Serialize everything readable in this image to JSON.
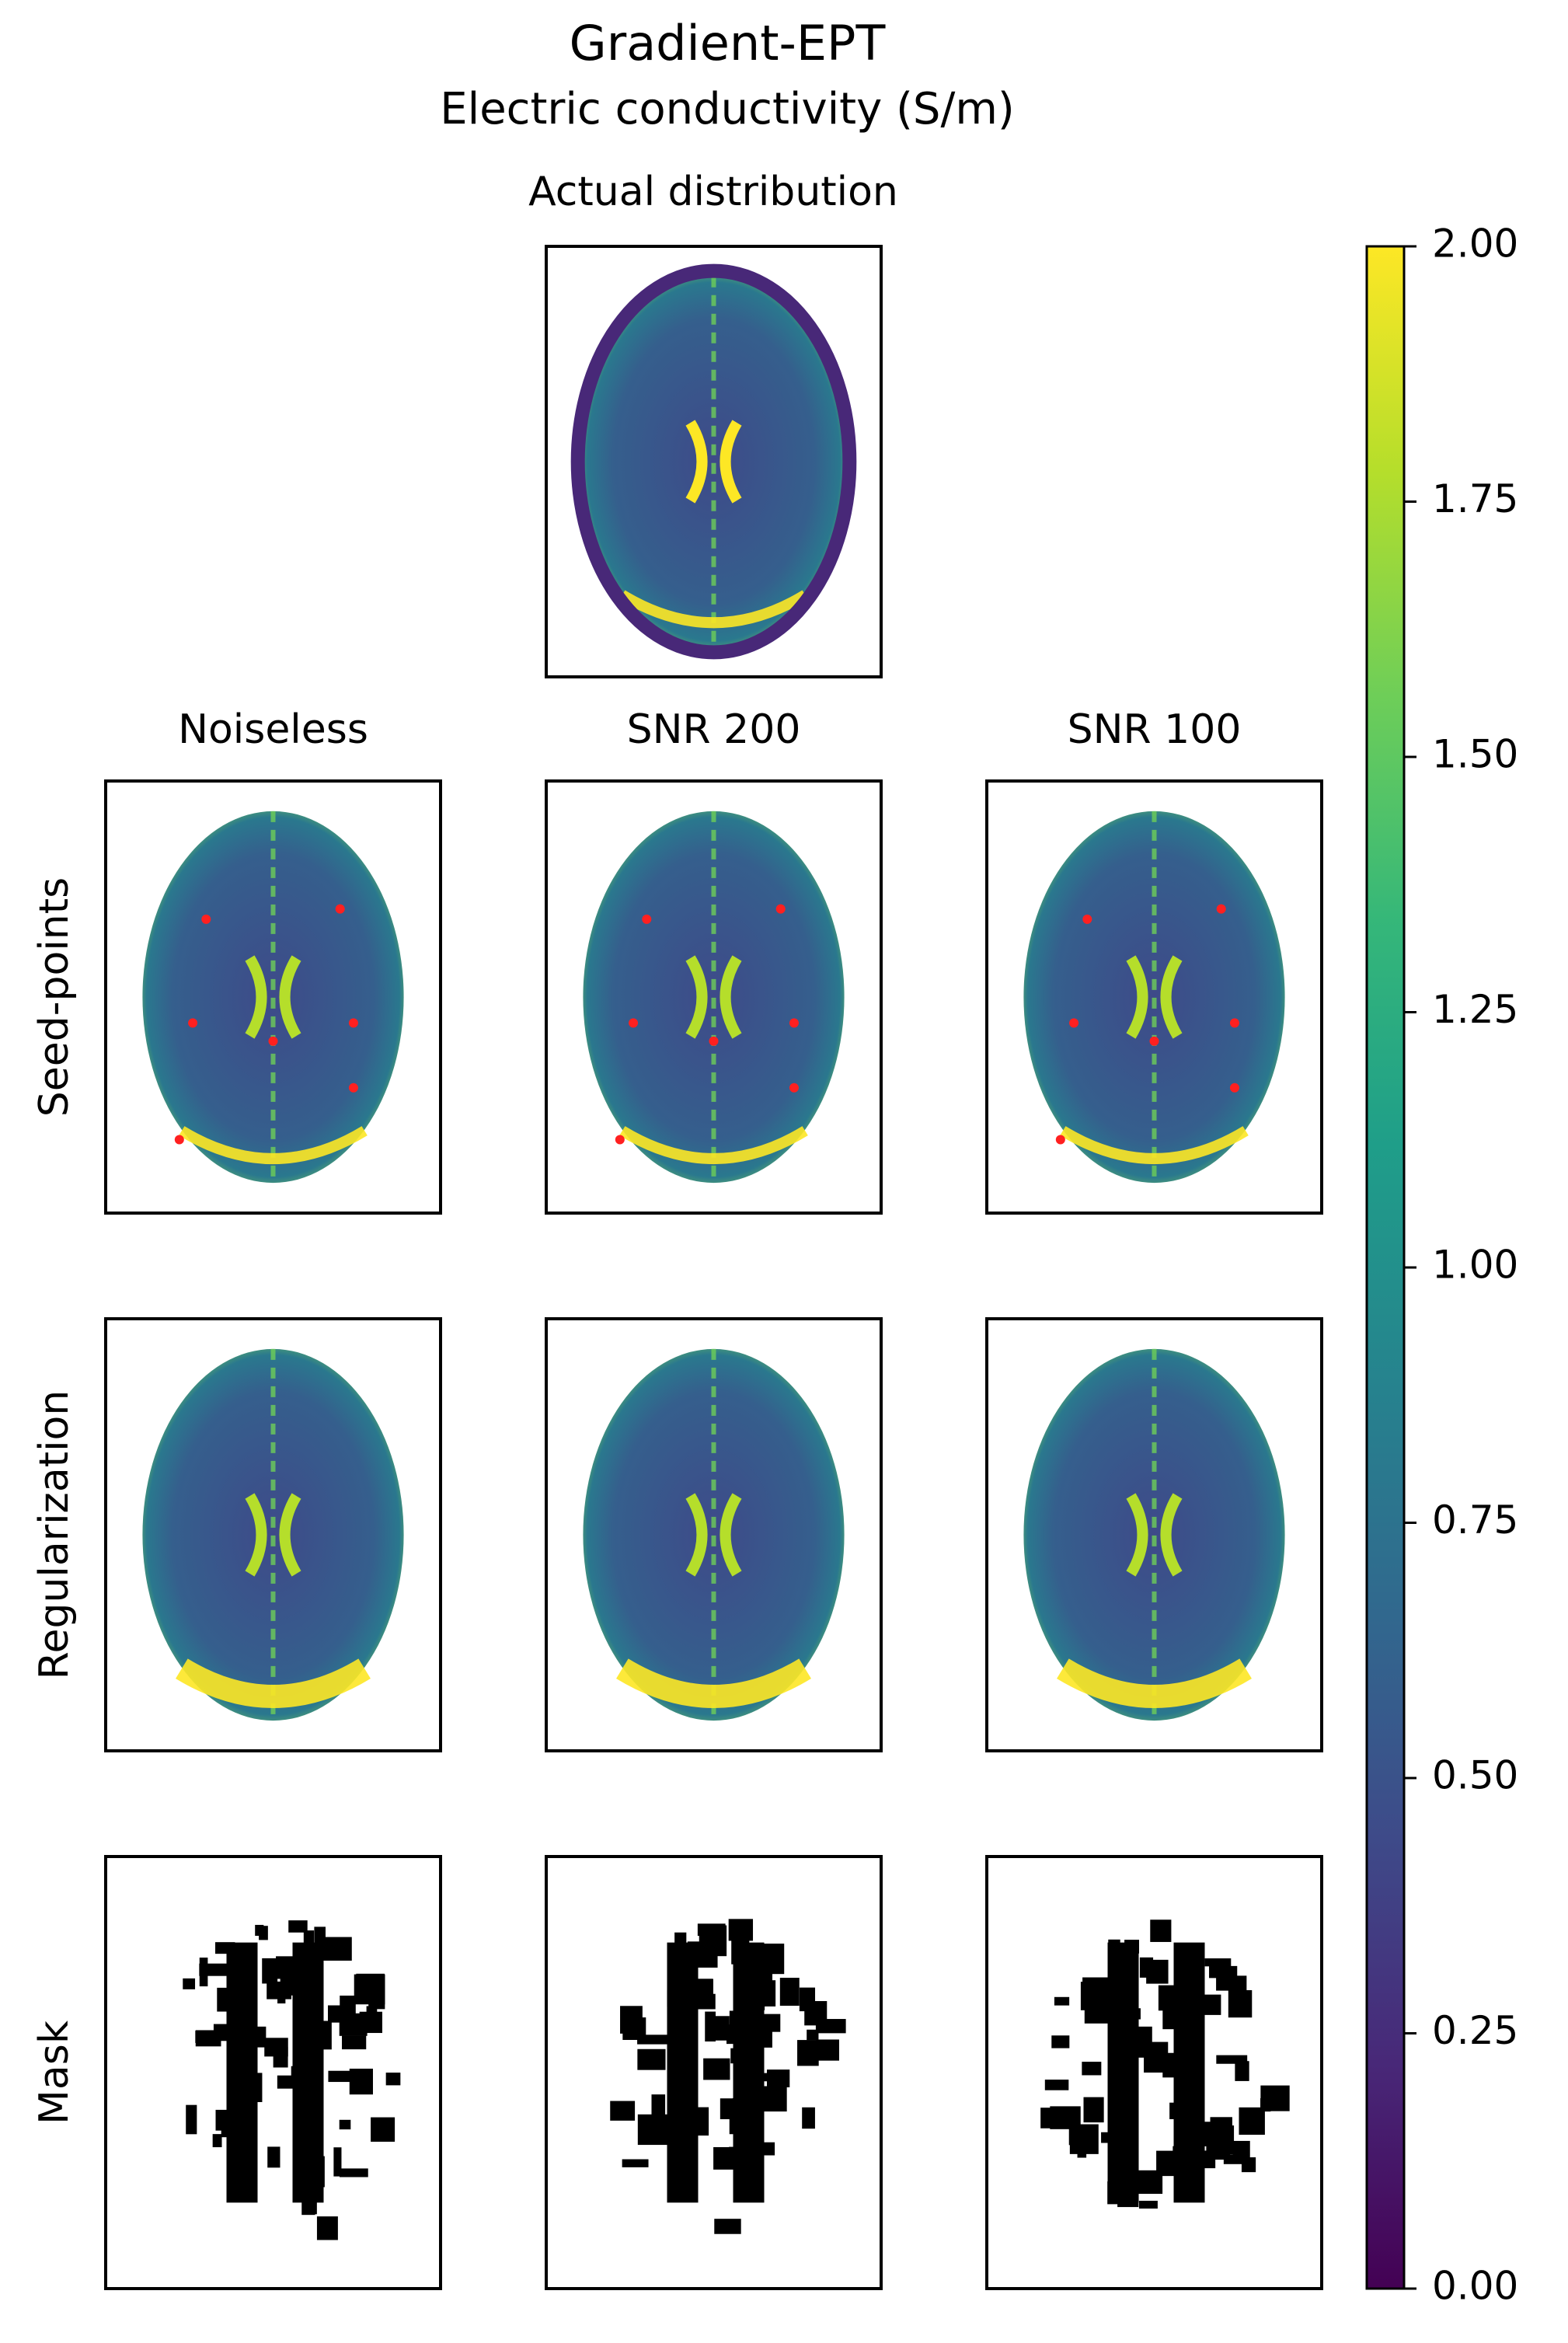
{
  "chart_data": {
    "type": "heatmap-grid",
    "title": "Gradient-EPT",
    "subtitle": "Electric conductivity (S/m)",
    "reference_title": "Actual distribution",
    "columns": [
      "Noiseless",
      "SNR 200",
      "SNR 100"
    ],
    "rows": [
      "Seed-points",
      "Regularization",
      "Mask"
    ],
    "colormap": "viridis",
    "colorbar": {
      "ylim": [
        0,
        2
      ],
      "yticks": [
        {
          "value": 0,
          "label": "0.00"
        },
        {
          "value": 0.25,
          "label": "0.25"
        },
        {
          "value": 0.5,
          "label": "0.50"
        },
        {
          "value": 0.75,
          "label": "0.75"
        },
        {
          "value": 1,
          "label": "1.00"
        },
        {
          "value": 1.25,
          "label": "1.25"
        },
        {
          "value": 1.5,
          "label": "1.50"
        },
        {
          "value": 1.75,
          "label": "1.75"
        },
        {
          "value": 2,
          "label": "2.00"
        }
      ]
    }
  }
}
